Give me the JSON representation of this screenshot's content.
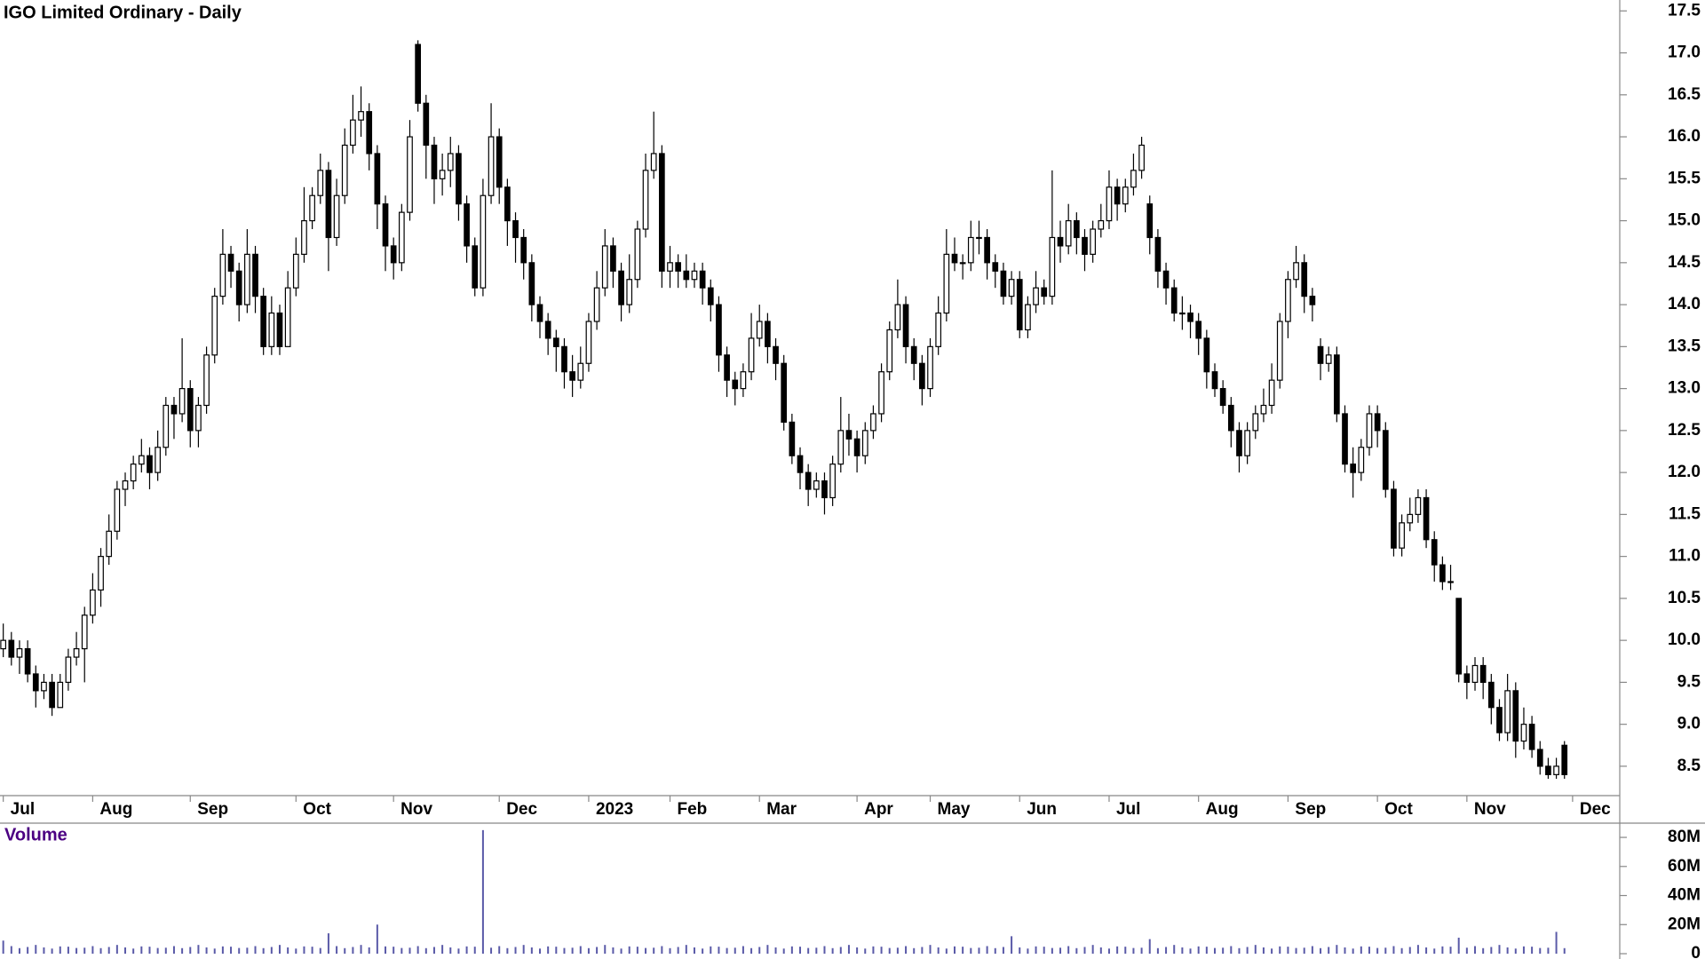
{
  "chart_data": {
    "type": "candlestick",
    "title": "IGO Limited Ordinary - Daily",
    "xlim": [
      -0.4,
      198.8
    ],
    "xticks": [
      {
        "value": 0,
        "label": "Jul"
      },
      {
        "value": 11,
        "label": "Aug"
      },
      {
        "value": 23,
        "label": "Sep"
      },
      {
        "value": 36,
        "label": "Oct"
      },
      {
        "value": 48,
        "label": "Nov"
      },
      {
        "value": 61,
        "label": "Dec"
      },
      {
        "value": 72,
        "label": "2023"
      },
      {
        "value": 82,
        "label": "Feb"
      },
      {
        "value": 93,
        "label": "Mar"
      },
      {
        "value": 105,
        "label": "Apr"
      },
      {
        "value": 114,
        "label": "May"
      },
      {
        "value": 125,
        "label": "Jun"
      },
      {
        "value": 136,
        "label": "Jul"
      },
      {
        "value": 147,
        "label": "Aug"
      },
      {
        "value": 158,
        "label": "Sep"
      },
      {
        "value": 169,
        "label": "Oct"
      },
      {
        "value": 180,
        "label": "Nov"
      },
      {
        "value": 193,
        "label": "Dec"
      }
    ],
    "ylim": [
      8.15,
      17.63
    ],
    "yticks": [
      8.5,
      {
        "value": 9,
        "label": "9.0"
      },
      9.5,
      {
        "value": 10,
        "label": "10.0"
      },
      10.5,
      {
        "value": 11,
        "label": "11.0"
      },
      11.5,
      {
        "value": 12,
        "label": "12.0"
      },
      12.5,
      {
        "value": 13,
        "label": "13.0"
      },
      13.5,
      {
        "value": 14,
        "label": "14.0"
      },
      14.5,
      {
        "value": 15,
        "label": "15.0"
      },
      15.5,
      {
        "value": 16,
        "label": "16.0"
      },
      16.5,
      {
        "value": 17,
        "label": "17.0"
      },
      17.5
    ],
    "up_color": "#ffffff",
    "down_color": "#000000",
    "open": [
      9.9,
      10.0,
      9.8,
      9.9,
      9.6,
      9.4,
      9.5,
      9.2,
      9.5,
      9.8,
      9.9,
      10.3,
      10.6,
      11.0,
      11.3,
      11.8,
      11.9,
      12.1,
      12.2,
      12.0,
      12.3,
      12.8,
      12.7,
      13.0,
      12.5,
      12.8,
      13.4,
      14.1,
      14.6,
      14.4,
      14.0,
      14.6,
      14.1,
      13.5,
      13.9,
      13.5,
      14.2,
      14.6,
      15.0,
      15.3,
      15.6,
      14.8,
      15.3,
      15.9,
      16.2,
      16.3,
      15.8,
      15.2,
      14.7,
      14.5,
      15.1,
      17.1,
      16.4,
      15.9,
      15.5,
      15.6,
      15.8,
      15.2,
      14.7,
      14.2,
      15.3,
      16.0,
      15.4,
      15.0,
      14.8,
      14.5,
      14.0,
      13.8,
      13.6,
      13.5,
      13.2,
      13.1,
      13.3,
      13.8,
      14.2,
      14.7,
      14.4,
      14.0,
      14.3,
      14.9,
      15.6,
      15.8,
      14.4,
      14.5,
      14.4,
      14.3,
      14.4,
      14.2,
      14.0,
      13.4,
      13.1,
      13.0,
      13.2,
      13.6,
      13.8,
      13.5,
      13.3,
      12.6,
      12.2,
      12.0,
      11.8,
      11.9,
      11.7,
      12.1,
      12.5,
      12.4,
      12.2,
      12.5,
      12.7,
      13.2,
      13.7,
      14.0,
      13.5,
      13.3,
      13.0,
      13.5,
      13.9,
      14.6,
      14.5,
      14.5,
      14.8,
      14.8,
      14.5,
      14.4,
      14.1,
      14.3,
      13.7,
      14.0,
      14.2,
      14.1,
      14.8,
      14.7,
      15.0,
      14.8,
      14.6,
      14.9,
      15.0,
      15.4,
      15.2,
      15.4,
      15.6,
      15.2,
      14.8,
      14.4,
      14.2,
      13.9,
      13.9,
      13.8,
      13.6,
      13.2,
      13.0,
      12.8,
      12.5,
      12.2,
      12.5,
      12.7,
      12.8,
      13.1,
      13.8,
      14.3,
      14.5,
      14.1,
      13.5,
      13.3,
      13.4,
      12.7,
      12.1,
      12.0,
      12.3,
      12.7,
      12.5,
      11.8,
      11.1,
      11.4,
      11.5,
      11.7,
      11.2,
      10.9,
      10.7,
      10.5,
      9.6,
      9.5,
      9.7,
      9.5,
      9.2,
      8.9,
      9.4,
      8.8,
      9.0,
      8.7,
      8.5,
      8.4,
      8.75
    ],
    "high": [
      10.2,
      10.1,
      10.0,
      10.0,
      9.7,
      9.6,
      9.6,
      9.6,
      9.9,
      10.1,
      10.4,
      10.8,
      11.1,
      11.5,
      11.9,
      12.0,
      12.2,
      12.4,
      12.3,
      12.5,
      12.9,
      12.9,
      13.6,
      13.1,
      12.9,
      13.5,
      14.2,
      14.9,
      14.7,
      14.5,
      14.9,
      14.7,
      14.2,
      14.1,
      14.0,
      14.4,
      14.8,
      15.4,
      15.4,
      15.8,
      15.7,
      15.5,
      16.1,
      16.5,
      16.6,
      16.4,
      15.9,
      15.3,
      14.8,
      15.2,
      16.2,
      17.15,
      16.5,
      16.0,
      15.8,
      16.0,
      15.9,
      15.3,
      14.8,
      15.5,
      16.4,
      16.1,
      15.5,
      15.1,
      14.9,
      14.6,
      14.1,
      13.9,
      13.7,
      13.6,
      13.4,
      13.5,
      13.9,
      14.4,
      14.9,
      14.8,
      14.5,
      14.6,
      15.0,
      15.8,
      16.3,
      15.9,
      14.7,
      14.6,
      14.6,
      14.5,
      14.5,
      14.3,
      14.1,
      13.5,
      13.2,
      13.3,
      13.9,
      14.0,
      13.9,
      13.6,
      13.4,
      12.7,
      12.3,
      12.1,
      12.0,
      12.0,
      12.2,
      12.9,
      12.7,
      12.5,
      12.6,
      12.8,
      13.3,
      13.8,
      14.3,
      14.1,
      13.6,
      13.4,
      13.6,
      14.1,
      14.9,
      14.8,
      14.6,
      15.0,
      15.0,
      14.9,
      14.6,
      14.5,
      14.4,
      14.4,
      14.1,
      14.4,
      14.3,
      15.6,
      15.0,
      15.2,
      15.1,
      14.9,
      15.0,
      15.2,
      15.6,
      15.5,
      15.5,
      15.8,
      16.0,
      15.3,
      14.9,
      14.5,
      14.3,
      14.1,
      14.0,
      13.9,
      13.7,
      13.3,
      13.1,
      12.9,
      12.6,
      12.6,
      12.8,
      13.0,
      13.3,
      13.9,
      14.4,
      14.7,
      14.6,
      14.2,
      13.6,
      13.5,
      13.5,
      12.8,
      12.3,
      12.4,
      12.8,
      12.8,
      12.6,
      11.9,
      11.5,
      11.7,
      11.8,
      11.8,
      11.3,
      11.0,
      10.9,
      10.5,
      9.7,
      9.8,
      9.8,
      9.6,
      9.3,
      9.6,
      9.5,
      9.2,
      9.1,
      8.8,
      8.6,
      8.6,
      8.8
    ],
    "low": [
      9.8,
      9.7,
      9.6,
      9.5,
      9.2,
      9.3,
      9.1,
      9.2,
      9.4,
      9.7,
      9.5,
      10.2,
      10.4,
      10.9,
      11.2,
      11.6,
      11.8,
      12.0,
      11.8,
      11.9,
      12.2,
      12.4,
      12.6,
      12.3,
      12.3,
      12.7,
      13.3,
      14.0,
      14.2,
      13.8,
      13.9,
      13.9,
      13.4,
      13.4,
      13.4,
      13.5,
      14.1,
      14.5,
      14.9,
      15.2,
      14.4,
      14.7,
      15.2,
      15.8,
      16.0,
      15.6,
      14.9,
      14.4,
      14.3,
      14.4,
      15.0,
      16.3,
      15.5,
      15.2,
      15.3,
      15.4,
      15.0,
      14.5,
      14.1,
      14.1,
      15.2,
      15.2,
      14.7,
      14.5,
      14.3,
      13.8,
      13.6,
      13.4,
      13.2,
      13.0,
      12.9,
      13.0,
      13.2,
      13.7,
      14.1,
      14.2,
      13.8,
      13.9,
      14.2,
      14.8,
      15.5,
      14.2,
      14.2,
      14.2,
      14.2,
      14.2,
      14.0,
      13.8,
      13.2,
      12.9,
      12.8,
      12.9,
      13.1,
      13.5,
      13.3,
      13.1,
      12.5,
      12.1,
      11.8,
      11.6,
      11.7,
      11.5,
      11.6,
      12.0,
      12.2,
      12.0,
      12.1,
      12.4,
      12.6,
      13.1,
      13.6,
      13.3,
      13.1,
      12.8,
      12.9,
      13.4,
      13.8,
      14.4,
      14.3,
      14.4,
      14.6,
      14.3,
      14.2,
      14.0,
      14.0,
      13.6,
      13.6,
      13.9,
      14.0,
      14.0,
      14.5,
      14.6,
      14.6,
      14.4,
      14.5,
      14.8,
      14.9,
      15.0,
      15.1,
      15.3,
      15.5,
      14.6,
      14.2,
      14.0,
      13.8,
      13.7,
      13.6,
      13.4,
      13.0,
      12.9,
      12.7,
      12.3,
      12.0,
      12.1,
      12.4,
      12.6,
      12.7,
      13.0,
      13.6,
      14.2,
      13.9,
      13.8,
      13.1,
      13.2,
      12.6,
      12.0,
      11.7,
      11.9,
      12.2,
      12.3,
      11.7,
      11.0,
      11.0,
      11.3,
      11.4,
      11.1,
      10.7,
      10.6,
      10.6,
      9.5,
      9.3,
      9.4,
      9.3,
      9.0,
      8.8,
      8.8,
      8.6,
      8.7,
      8.6,
      8.4,
      8.35,
      8.35,
      8.35
    ],
    "close": [
      10.0,
      9.8,
      9.9,
      9.6,
      9.4,
      9.5,
      9.2,
      9.5,
      9.8,
      9.9,
      10.3,
      10.6,
      11.0,
      11.3,
      11.8,
      11.9,
      12.1,
      12.2,
      12.0,
      12.3,
      12.8,
      12.7,
      13.0,
      12.5,
      12.8,
      13.4,
      14.1,
      14.6,
      14.4,
      14.0,
      14.6,
      14.1,
      13.5,
      13.9,
      13.5,
      14.2,
      14.6,
      15.0,
      15.3,
      15.6,
      14.8,
      15.3,
      15.9,
      16.2,
      16.3,
      15.8,
      15.2,
      14.7,
      14.5,
      15.1,
      16.0,
      16.4,
      15.9,
      15.5,
      15.6,
      15.8,
      15.2,
      14.7,
      14.2,
      15.3,
      16.0,
      15.4,
      15.0,
      14.8,
      14.5,
      14.0,
      13.8,
      13.6,
      13.5,
      13.2,
      13.1,
      13.3,
      13.8,
      14.2,
      14.7,
      14.4,
      14.0,
      14.3,
      14.9,
      15.6,
      15.8,
      14.4,
      14.5,
      14.4,
      14.3,
      14.4,
      14.2,
      14.0,
      13.4,
      13.1,
      13.0,
      13.2,
      13.6,
      13.8,
      13.5,
      13.3,
      12.6,
      12.2,
      12.0,
      11.8,
      11.9,
      11.7,
      12.1,
      12.5,
      12.4,
      12.2,
      12.5,
      12.7,
      13.2,
      13.7,
      14.0,
      13.5,
      13.3,
      13.0,
      13.5,
      13.9,
      14.6,
      14.5,
      14.5,
      14.8,
      14.8,
      14.5,
      14.4,
      14.1,
      14.3,
      13.7,
      14.0,
      14.2,
      14.1,
      14.8,
      14.7,
      15.0,
      14.8,
      14.6,
      14.9,
      15.0,
      15.4,
      15.2,
      15.4,
      15.6,
      15.9,
      14.8,
      14.4,
      14.2,
      13.9,
      13.9,
      13.8,
      13.6,
      13.2,
      13.0,
      12.8,
      12.5,
      12.2,
      12.5,
      12.7,
      12.8,
      13.1,
      13.8,
      14.3,
      14.5,
      14.1,
      14.0,
      13.3,
      13.4,
      12.7,
      12.1,
      12.0,
      12.3,
      12.7,
      12.5,
      11.8,
      11.1,
      11.4,
      11.5,
      11.7,
      11.2,
      10.9,
      10.7,
      10.7,
      9.6,
      9.5,
      9.7,
      9.5,
      9.2,
      8.9,
      9.4,
      8.8,
      9.0,
      8.7,
      8.5,
      8.4,
      8.5,
      8.4
    ],
    "volume": {
      "title": "Volume",
      "color": "#5a5aa8",
      "ylim": [
        0,
        89800000
      ],
      "yticks": [
        0,
        {
          "value": 20000000,
          "label": "20M"
        },
        {
          "value": 40000000,
          "label": "40M"
        },
        {
          "value": 60000000,
          "label": "60M"
        },
        {
          "value": 80000000,
          "label": "80M"
        }
      ],
      "values": [
        9000000,
        5200000,
        3800000,
        4600000,
        6000000,
        4300000,
        3500000,
        5000000,
        4800000,
        3900000,
        4100000,
        5200000,
        3800000,
        4600000,
        6000000,
        4300000,
        3500000,
        5000000,
        4800000,
        3900000,
        4100000,
        5200000,
        3800000,
        4600000,
        6000000,
        4300000,
        3500000,
        5000000,
        4800000,
        3900000,
        4100000,
        5200000,
        3800000,
        4600000,
        6000000,
        4300000,
        3500000,
        5000000,
        4800000,
        3900000,
        14000000,
        5200000,
        3800000,
        4600000,
        6000000,
        4300000,
        20000000,
        5000000,
        4800000,
        3900000,
        4100000,
        5200000,
        3800000,
        4600000,
        6000000,
        4300000,
        3500000,
        5000000,
        4800000,
        85000000,
        4100000,
        5200000,
        3800000,
        4600000,
        6000000,
        4300000,
        3500000,
        5000000,
        4800000,
        3900000,
        4100000,
        5200000,
        3800000,
        4600000,
        6000000,
        4300000,
        3500000,
        5000000,
        4800000,
        3900000,
        4100000,
        5200000,
        3800000,
        4600000,
        6000000,
        4300000,
        3500000,
        5000000,
        4800000,
        3900000,
        4100000,
        5200000,
        3800000,
        4600000,
        6000000,
        4300000,
        3500000,
        5000000,
        4800000,
        3900000,
        4100000,
        5200000,
        3800000,
        4600000,
        6000000,
        4300000,
        3500000,
        5000000,
        4800000,
        3900000,
        4100000,
        5200000,
        3800000,
        4600000,
        6000000,
        4300000,
        3500000,
        5000000,
        4800000,
        3900000,
        4100000,
        5200000,
        3800000,
        4600000,
        12000000,
        4300000,
        3500000,
        5000000,
        4800000,
        3900000,
        4100000,
        5200000,
        3800000,
        4600000,
        6000000,
        4300000,
        3500000,
        5000000,
        4800000,
        3900000,
        4100000,
        10000000,
        3800000,
        4600000,
        6000000,
        4300000,
        3500000,
        5000000,
        4800000,
        3900000,
        4100000,
        5200000,
        3800000,
        4600000,
        6000000,
        4300000,
        3500000,
        5000000,
        4800000,
        3900000,
        4100000,
        5200000,
        3800000,
        4600000,
        6000000,
        4300000,
        3500000,
        5000000,
        4800000,
        3900000,
        4100000,
        5200000,
        3800000,
        4600000,
        6000000,
        4300000,
        3500000,
        5000000,
        4800000,
        11000000,
        4100000,
        5200000,
        3800000,
        4600000,
        6000000,
        4300000,
        3500000,
        5000000,
        4800000,
        3900000,
        4100000,
        15000000,
        3800000
      ]
    }
  }
}
